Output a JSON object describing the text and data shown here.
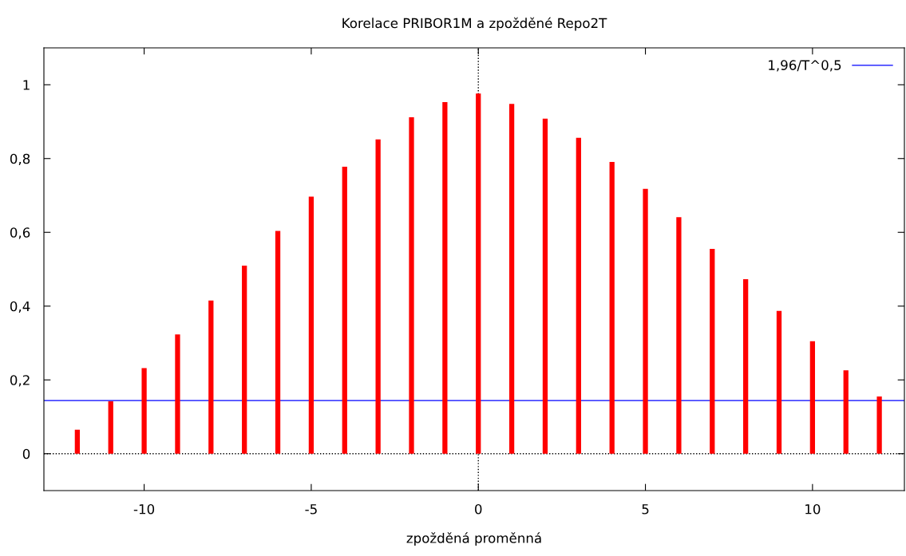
{
  "chart_data": {
    "type": "bar",
    "title": "Korelace PRIBOR1M a zpožděné Repo2T",
    "xlabel": "zpožděná proměnná",
    "x": [
      -12,
      -11,
      -10,
      -9,
      -8,
      -7,
      -6,
      -5,
      -4,
      -3,
      -2,
      -1,
      0,
      1,
      2,
      3,
      4,
      5,
      6,
      7,
      8,
      9,
      10,
      11,
      12
    ],
    "series": [
      {
        "color": "#ff0000",
        "values": [
          0.065,
          0.142,
          0.232,
          0.323,
          0.415,
          0.51,
          0.604,
          0.697,
          0.778,
          0.852,
          0.912,
          0.953,
          0.976,
          0.948,
          0.908,
          0.856,
          0.791,
          0.718,
          0.641,
          0.555,
          0.473,
          0.387,
          0.305,
          0.226,
          0.155
        ]
      }
    ],
    "xlim": [
      -13,
      12.75
    ],
    "ylim": [
      -0.1,
      1.1
    ],
    "xticks": [
      {
        "value": -10,
        "label": "-10"
      },
      {
        "value": -5,
        "label": "-5"
      },
      0,
      5,
      10
    ],
    "yticks": [
      0,
      {
        "value": 0.2,
        "label": "0,2"
      },
      {
        "value": 0.4,
        "label": "0,4"
      },
      {
        "value": 0.6,
        "label": "0,6"
      },
      {
        "value": 0.8,
        "label": "0,8"
      },
      1
    ],
    "ref_lines": [
      {
        "axis": "y",
        "value": 0.144,
        "label": "1,96/T^0,5",
        "color": "#0000ff",
        "line_style": "solid"
      },
      {
        "axis": "y",
        "value": 0,
        "color": "#000000",
        "line_style": "dotted"
      },
      {
        "axis": "x",
        "value": 0,
        "color": "#000000",
        "line_style": "dotted"
      }
    ],
    "legend": "top right",
    "grid": false
  }
}
